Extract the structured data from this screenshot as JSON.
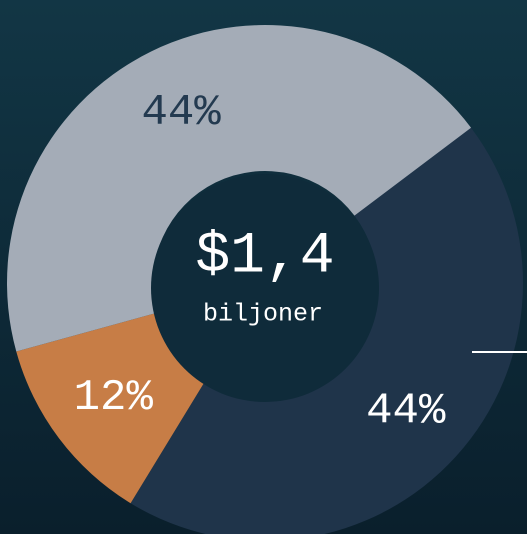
{
  "chart_data": {
    "type": "donut",
    "categories": [
      null,
      null,
      null
    ],
    "values": [
      44,
      12,
      44
    ],
    "value_labels": [
      "44%",
      "12%",
      "44%"
    ],
    "colors": [
      "#1f344a",
      "#c77d46",
      "#a4acb7"
    ],
    "label_colors": [
      "#ffffff",
      "#ffffff",
      "#233a50"
    ],
    "center_value": "$1,4",
    "center_label": "biljoner"
  }
}
